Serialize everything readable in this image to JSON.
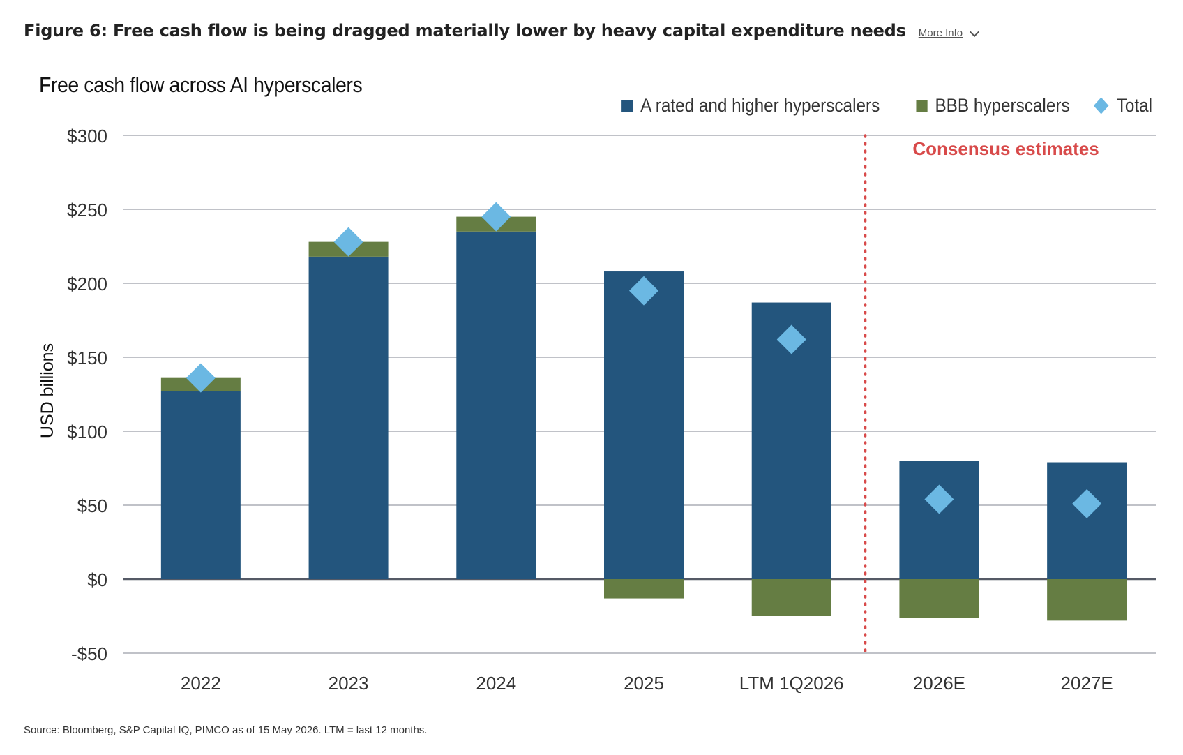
{
  "header": {
    "figure_title": "Figure 6: Free cash flow is being dragged materially lower by heavy capital expenditure needs",
    "more_info_label": "More Info"
  },
  "source_note": "Source: Bloomberg, S&P Capital IQ, PIMCO as of 15 May 2026. LTM = last 12 months.",
  "chart_data": {
    "type": "bar",
    "stacked": true,
    "title": "Free cash flow across AI hyperscalers",
    "ylabel": "USD billions",
    "ylim": [
      -50,
      300
    ],
    "yticks": [
      -50,
      0,
      50,
      100,
      150,
      200,
      250,
      300
    ],
    "ytick_labels": [
      "-$50",
      "$0",
      "$50",
      "$100",
      "$150",
      "$200",
      "$250",
      "$300"
    ],
    "categories": [
      "2022",
      "2023",
      "2024",
      "2025",
      "LTM 1Q2026",
      "2026E",
      "2027E"
    ],
    "series": [
      {
        "name": "A rated and higher hyperscalers",
        "type": "bar",
        "color": "#23557d",
        "values": [
          127,
          218,
          235,
          208,
          187,
          80,
          79
        ]
      },
      {
        "name": "BBB hyperscalers",
        "type": "bar",
        "color": "#657d43",
        "values": [
          9,
          10,
          10,
          -13,
          -25,
          -26,
          -28
        ]
      },
      {
        "name": "Total",
        "type": "marker",
        "marker": "diamond",
        "color": "#6bb8e3",
        "values": [
          136,
          228,
          245,
          195,
          162,
          54,
          51
        ]
      }
    ],
    "annotation": {
      "text": "Consensus estimates",
      "color": "#d84a4a",
      "divider_after_category": "LTM 1Q2026"
    },
    "grid": true,
    "legend_position": "top-right"
  }
}
